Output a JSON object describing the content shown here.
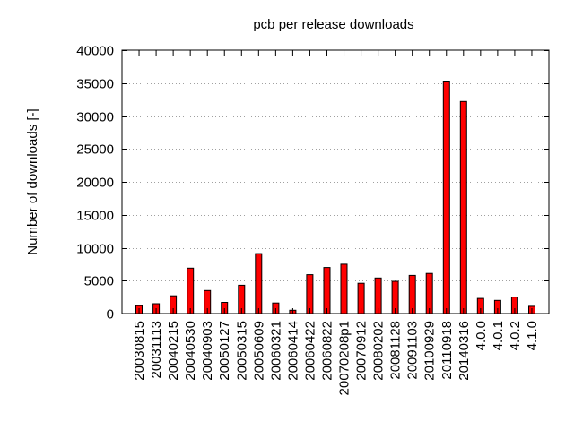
{
  "chart_data": {
    "type": "bar",
    "title": "pcb per release downloads",
    "xlabel": "",
    "ylabel": "Number of downloads [-]",
    "ylim": [
      0,
      40000
    ],
    "yticks": [
      0,
      5000,
      10000,
      15000,
      20000,
      25000,
      30000,
      35000,
      40000
    ],
    "grid": "horizontal dotted",
    "legend": "none",
    "bar_color": "#ff0000",
    "categories": [
      "20030815",
      "20031113",
      "20040215",
      "20040530",
      "20040903",
      "20050127",
      "20050315",
      "20050609",
      "20060321",
      "20060414",
      "20060422",
      "20060822",
      "20070208p1",
      "20070912",
      "20080202",
      "20081128",
      "20091103",
      "20100929",
      "20110918",
      "20140316",
      "4.0.0",
      "4.0.1",
      "4.0.2",
      "4.1.0"
    ],
    "values": [
      1200,
      1500,
      2700,
      6900,
      3500,
      1700,
      4300,
      9100,
      1600,
      500,
      5900,
      7000,
      7500,
      4600,
      5400,
      4900,
      5800,
      6100,
      35300,
      32200,
      2300,
      2000,
      2500,
      1100
    ]
  }
}
